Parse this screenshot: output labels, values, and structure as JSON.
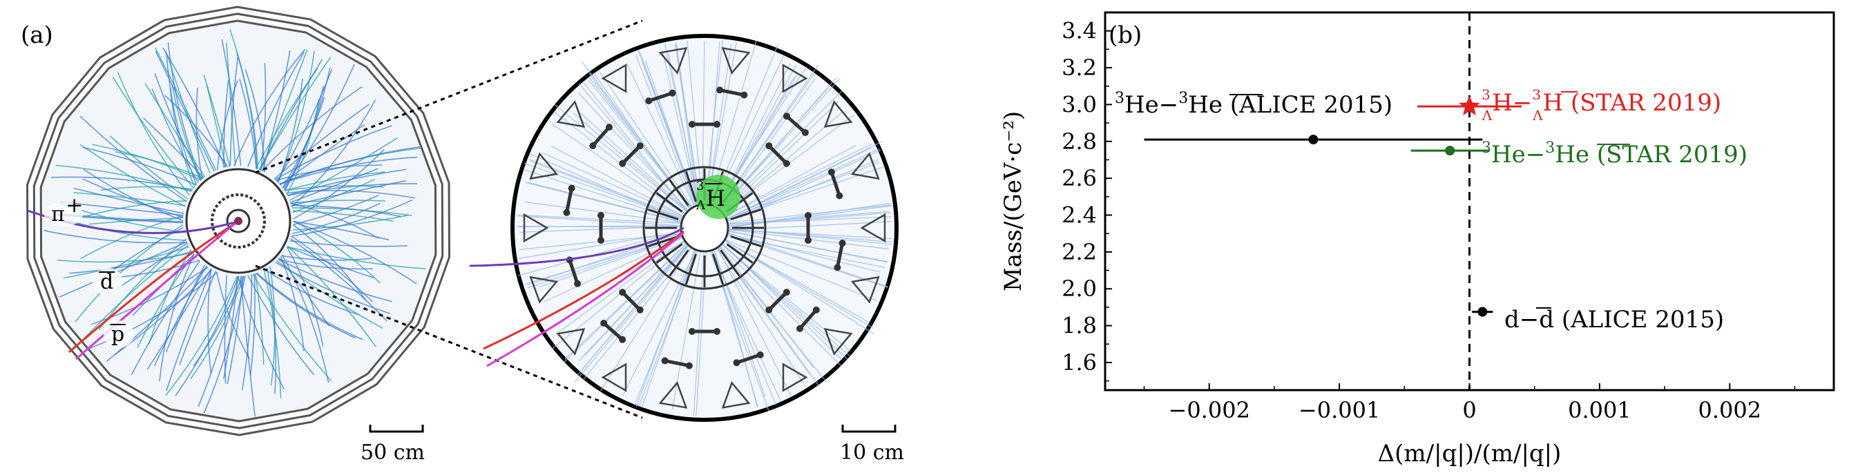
{
  "panel_a": {
    "label": "(a)",
    "scale_bar_1": "50 cm",
    "scale_bar_2": "10 cm",
    "particles": {
      "pi_plus": "π+",
      "d_bar": "d",
      "p_bar": "p",
      "hypertriton_bar": "ΛH"
    },
    "colors": {
      "tracks": "#3b78d0",
      "tracks_light": "#9dbbe6",
      "pi_track": "#6a3fb8",
      "d_track": "#e0302a",
      "p_track": "#d23fd0",
      "vertex_glow": "#4fd24f"
    }
  },
  "chart_data": {
    "type": "scatter",
    "panel_label": "(b)",
    "xlabel": "Δ(m/|q|)/(m/|q|)",
    "ylabel": "Mass/(GeV·c⁻²)",
    "xlim": [
      -0.0028,
      0.0028
    ],
    "ylim": [
      1.45,
      3.5
    ],
    "xticks": [
      -0.002,
      -0.001,
      0,
      0.001,
      0.002
    ],
    "xtick_labels": [
      "−0.002",
      "−0.001",
      "0",
      "0.001",
      "0.002"
    ],
    "yticks": [
      1.6,
      1.8,
      2.0,
      2.2,
      2.4,
      2.6,
      2.8,
      3.0,
      3.2,
      3.4
    ],
    "ytick_labels": [
      "1.6",
      "1.8",
      "2.0",
      "2.2",
      "2.4",
      "2.6",
      "2.8",
      "3.0",
      "3.2",
      "3.4"
    ],
    "reference_line_x": 0,
    "points": [
      {
        "label": "3He−3He (ALICE 2015)",
        "x": -0.0012,
        "xerr": 0.0013,
        "y": 2.81,
        "color": "#000000",
        "marker": "circle"
      },
      {
        "label": "3ΛH−3ΛH (STAR 2019)",
        "x": 0.0,
        "xerr": 0.0004,
        "y": 2.99,
        "color": "#e02020",
        "marker": "star"
      },
      {
        "label": "3He−3He (STAR 2019)",
        "x": -0.00015,
        "xerr": 0.0003,
        "y": 2.75,
        "color": "#1e6e1e",
        "marker": "circle"
      },
      {
        "label": "d−d (ALICE 2015)",
        "x": 0.0001,
        "xerr": 8e-05,
        "y": 1.875,
        "color": "#000000",
        "marker": "circle"
      }
    ]
  }
}
